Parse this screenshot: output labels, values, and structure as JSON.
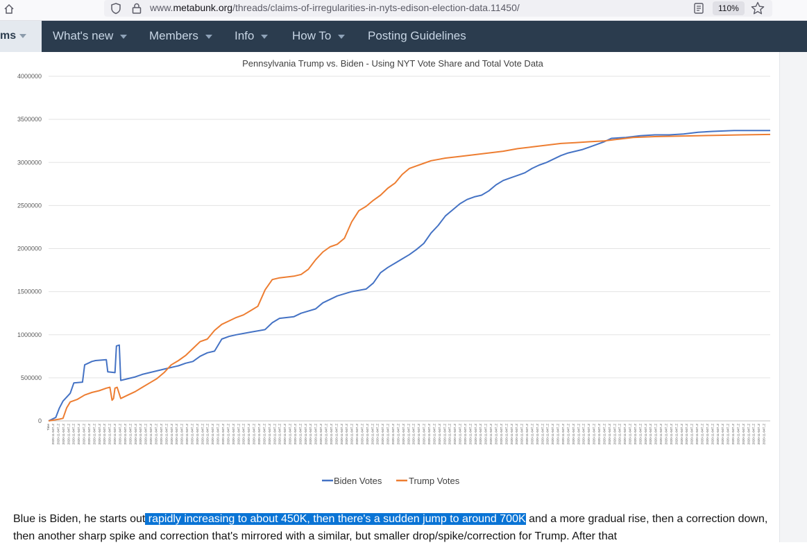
{
  "browser": {
    "url_prefix": "www.",
    "url_host": "metabunk.org",
    "url_path": "/threads/claims-of-irregularities-in-nyts-edison-election-data.11450/",
    "zoom": "110%"
  },
  "nav": {
    "forums_label": "ms",
    "items": [
      {
        "label": "What's new",
        "has_menu": true
      },
      {
        "label": "Members",
        "has_menu": true
      },
      {
        "label": "Info",
        "has_menu": true
      },
      {
        "label": "How To",
        "has_menu": true
      },
      {
        "label": "Posting Guidelines",
        "has_menu": false
      }
    ]
  },
  "colors": {
    "nav_bg": "#2b3c4e",
    "biden": "#4472c4",
    "trump": "#ed7d31",
    "highlight": "#0a74d5"
  },
  "chart_data": {
    "type": "line",
    "title": "Pennsylvania Trump vs. Biden - Using NYT Vote Share and Total Vote Data",
    "ylim": [
      0,
      4000000
    ],
    "yticks": [
      0,
      500000,
      1000000,
      1500000,
      2000000,
      2500000,
      3000000,
      3500000,
      4000000
    ],
    "grid": true,
    "legend": "bottom",
    "x_first_label": "Time",
    "x_label_pattern": "2020-11-04T..Z",
    "x_tick_count": 140,
    "series": [
      {
        "name": "Biden Votes",
        "color": "#4472c4",
        "points": [
          [
            0,
            0
          ],
          [
            0.01,
            40000
          ],
          [
            0.015,
            150000
          ],
          [
            0.02,
            230000
          ],
          [
            0.03,
            320000
          ],
          [
            0.035,
            440000
          ],
          [
            0.047,
            450000
          ],
          [
            0.05,
            650000
          ],
          [
            0.055,
            670000
          ],
          [
            0.06,
            690000
          ],
          [
            0.065,
            700000
          ],
          [
            0.08,
            710000
          ],
          [
            0.082,
            570000
          ],
          [
            0.092,
            560000
          ],
          [
            0.094,
            870000
          ],
          [
            0.098,
            880000
          ],
          [
            0.1,
            470000
          ],
          [
            0.12,
            510000
          ],
          [
            0.13,
            540000
          ],
          [
            0.14,
            560000
          ],
          [
            0.15,
            580000
          ],
          [
            0.16,
            600000
          ],
          [
            0.18,
            640000
          ],
          [
            0.19,
            670000
          ],
          [
            0.2,
            690000
          ],
          [
            0.21,
            750000
          ],
          [
            0.22,
            790000
          ],
          [
            0.23,
            810000
          ],
          [
            0.24,
            950000
          ],
          [
            0.25,
            980000
          ],
          [
            0.26,
            1000000
          ],
          [
            0.28,
            1030000
          ],
          [
            0.3,
            1060000
          ],
          [
            0.31,
            1140000
          ],
          [
            0.32,
            1190000
          ],
          [
            0.34,
            1210000
          ],
          [
            0.35,
            1250000
          ],
          [
            0.37,
            1300000
          ],
          [
            0.38,
            1370000
          ],
          [
            0.39,
            1410000
          ],
          [
            0.4,
            1450000
          ],
          [
            0.42,
            1500000
          ],
          [
            0.44,
            1530000
          ],
          [
            0.45,
            1600000
          ],
          [
            0.46,
            1720000
          ],
          [
            0.47,
            1780000
          ],
          [
            0.48,
            1830000
          ],
          [
            0.49,
            1880000
          ],
          [
            0.5,
            1930000
          ],
          [
            0.51,
            1990000
          ],
          [
            0.52,
            2060000
          ],
          [
            0.53,
            2180000
          ],
          [
            0.54,
            2270000
          ],
          [
            0.55,
            2380000
          ],
          [
            0.56,
            2450000
          ],
          [
            0.57,
            2520000
          ],
          [
            0.58,
            2570000
          ],
          [
            0.59,
            2600000
          ],
          [
            0.6,
            2620000
          ],
          [
            0.61,
            2670000
          ],
          [
            0.62,
            2740000
          ],
          [
            0.63,
            2790000
          ],
          [
            0.64,
            2820000
          ],
          [
            0.65,
            2850000
          ],
          [
            0.66,
            2880000
          ],
          [
            0.67,
            2930000
          ],
          [
            0.68,
            2970000
          ],
          [
            0.69,
            3000000
          ],
          [
            0.7,
            3040000
          ],
          [
            0.71,
            3080000
          ],
          [
            0.72,
            3110000
          ],
          [
            0.73,
            3130000
          ],
          [
            0.74,
            3150000
          ],
          [
            0.75,
            3180000
          ],
          [
            0.76,
            3210000
          ],
          [
            0.77,
            3240000
          ],
          [
            0.78,
            3280000
          ],
          [
            0.8,
            3290000
          ],
          [
            0.82,
            3310000
          ],
          [
            0.84,
            3320000
          ],
          [
            0.86,
            3320000
          ],
          [
            0.88,
            3330000
          ],
          [
            0.9,
            3350000
          ],
          [
            0.92,
            3360000
          ],
          [
            0.95,
            3370000
          ],
          [
            1,
            3370000
          ]
        ]
      },
      {
        "name": "Trump Votes",
        "color": "#ed7d31",
        "points": [
          [
            0,
            0
          ],
          [
            0.015,
            20000
          ],
          [
            0.02,
            30000
          ],
          [
            0.025,
            150000
          ],
          [
            0.03,
            220000
          ],
          [
            0.04,
            250000
          ],
          [
            0.05,
            300000
          ],
          [
            0.06,
            330000
          ],
          [
            0.07,
            350000
          ],
          [
            0.08,
            380000
          ],
          [
            0.085,
            390000
          ],
          [
            0.088,
            240000
          ],
          [
            0.09,
            260000
          ],
          [
            0.092,
            380000
          ],
          [
            0.095,
            390000
          ],
          [
            0.1,
            260000
          ],
          [
            0.11,
            300000
          ],
          [
            0.12,
            340000
          ],
          [
            0.13,
            390000
          ],
          [
            0.14,
            440000
          ],
          [
            0.15,
            490000
          ],
          [
            0.16,
            560000
          ],
          [
            0.17,
            650000
          ],
          [
            0.18,
            700000
          ],
          [
            0.19,
            760000
          ],
          [
            0.2,
            840000
          ],
          [
            0.21,
            920000
          ],
          [
            0.22,
            950000
          ],
          [
            0.23,
            1050000
          ],
          [
            0.24,
            1120000
          ],
          [
            0.25,
            1160000
          ],
          [
            0.26,
            1200000
          ],
          [
            0.27,
            1230000
          ],
          [
            0.28,
            1280000
          ],
          [
            0.29,
            1330000
          ],
          [
            0.3,
            1520000
          ],
          [
            0.31,
            1640000
          ],
          [
            0.32,
            1660000
          ],
          [
            0.34,
            1680000
          ],
          [
            0.35,
            1700000
          ],
          [
            0.36,
            1760000
          ],
          [
            0.37,
            1870000
          ],
          [
            0.38,
            1960000
          ],
          [
            0.39,
            2020000
          ],
          [
            0.4,
            2050000
          ],
          [
            0.41,
            2120000
          ],
          [
            0.42,
            2310000
          ],
          [
            0.43,
            2440000
          ],
          [
            0.44,
            2490000
          ],
          [
            0.45,
            2560000
          ],
          [
            0.46,
            2620000
          ],
          [
            0.47,
            2700000
          ],
          [
            0.48,
            2760000
          ],
          [
            0.49,
            2860000
          ],
          [
            0.5,
            2930000
          ],
          [
            0.51,
            2960000
          ],
          [
            0.52,
            2990000
          ],
          [
            0.53,
            3020000
          ],
          [
            0.55,
            3050000
          ],
          [
            0.57,
            3070000
          ],
          [
            0.59,
            3090000
          ],
          [
            0.61,
            3110000
          ],
          [
            0.63,
            3130000
          ],
          [
            0.65,
            3160000
          ],
          [
            0.67,
            3180000
          ],
          [
            0.69,
            3200000
          ],
          [
            0.71,
            3220000
          ],
          [
            0.73,
            3230000
          ],
          [
            0.75,
            3240000
          ],
          [
            0.77,
            3250000
          ],
          [
            0.79,
            3270000
          ],
          [
            0.81,
            3290000
          ],
          [
            0.84,
            3300000
          ],
          [
            0.87,
            3305000
          ],
          [
            0.9,
            3310000
          ],
          [
            0.93,
            3315000
          ],
          [
            0.96,
            3320000
          ],
          [
            1,
            3325000
          ]
        ]
      }
    ]
  },
  "post": {
    "text_before": "Blue is Biden, he starts out",
    "text_highlight": " rapidly increasing to about 450K, then there's a sudden jump to around 700K",
    "text_after": " and a more gradual rise, then a correction down, then another sharp spike and correction that's mirrored with a similar, but smaller drop/spike/correction for Trump. After that"
  }
}
